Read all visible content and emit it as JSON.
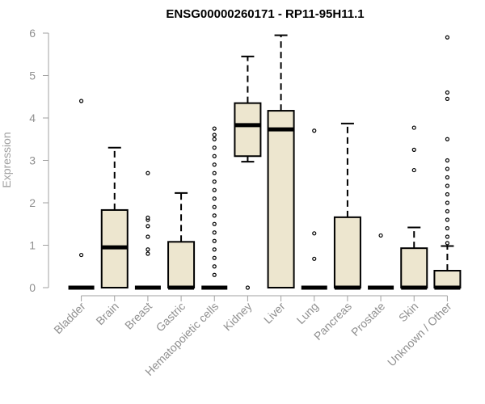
{
  "chart_data": {
    "type": "boxplot",
    "title": "ENSG00000260171 - RP11-95H11.1",
    "xlabel": "",
    "ylabel": "Expression",
    "ylim": [
      0,
      6
    ],
    "yticks": [
      0,
      1,
      2,
      3,
      4,
      5,
      6
    ],
    "box_color": "#ede6cf",
    "categories": [
      "Bladder",
      "Brain",
      "Breast",
      "Gastric",
      "Hematopoietic cells",
      "Kidney",
      "Liver",
      "Lung",
      "Pancreas",
      "Prostate",
      "Skin",
      "Unknown / Other"
    ],
    "boxes": [
      {
        "category": "Bladder",
        "min": 0,
        "q1": 0,
        "median": 0,
        "q3": 0,
        "max": 0,
        "outliers": [
          0.77,
          4.4
        ]
      },
      {
        "category": "Brain",
        "min": 0,
        "q1": 0,
        "median": 0.95,
        "q3": 1.83,
        "max": 3.3,
        "outliers": []
      },
      {
        "category": "Breast",
        "min": 0,
        "q1": 0,
        "median": 0,
        "q3": 0,
        "max": 0,
        "outliers": [
          0.8,
          0.9,
          1.2,
          1.45,
          1.6,
          1.65,
          2.7
        ]
      },
      {
        "category": "Gastric",
        "min": 0,
        "q1": 0,
        "median": 0,
        "q3": 1.08,
        "max": 2.23,
        "outliers": []
      },
      {
        "category": "Hematopoietic cells",
        "min": 0,
        "q1": 0,
        "median": 0,
        "q3": 0,
        "max": 0,
        "outliers": [
          0.3,
          0.5,
          0.7,
          0.9,
          1.1,
          1.3,
          1.5,
          1.7,
          1.9,
          2.1,
          2.3,
          2.5,
          2.7,
          2.9,
          3.1,
          3.3,
          3.5,
          3.6,
          3.75
        ]
      },
      {
        "category": "Kidney",
        "min": 2.97,
        "q1": 3.1,
        "median": 3.83,
        "q3": 4.35,
        "max": 5.45,
        "outliers": [
          0
        ]
      },
      {
        "category": "Liver",
        "min": 0,
        "q1": 0,
        "median": 3.73,
        "q3": 4.17,
        "max": 5.95,
        "outliers": []
      },
      {
        "category": "Lung",
        "min": 0,
        "q1": 0,
        "median": 0,
        "q3": 0,
        "max": 0,
        "outliers": [
          0.68,
          1.28,
          3.7
        ]
      },
      {
        "category": "Pancreas",
        "min": 0,
        "q1": 0,
        "median": 0,
        "q3": 1.66,
        "max": 3.87,
        "outliers": []
      },
      {
        "category": "Prostate",
        "min": 0,
        "q1": 0,
        "median": 0,
        "q3": 0,
        "max": 0,
        "outliers": [
          1.23
        ]
      },
      {
        "category": "Skin",
        "min": 0,
        "q1": 0,
        "median": 0,
        "q3": 0.93,
        "max": 1.42,
        "outliers": [
          2.77,
          3.25,
          3.77
        ]
      },
      {
        "category": "Unknown / Other",
        "min": 0,
        "q1": 0,
        "median": 0,
        "q3": 0.4,
        "max": 0.98,
        "outliers": [
          1.05,
          1.2,
          1.4,
          1.6,
          1.8,
          2.0,
          2.2,
          2.4,
          2.6,
          2.8,
          3.0,
          3.5,
          4.45,
          4.6,
          5.9
        ]
      }
    ]
  }
}
